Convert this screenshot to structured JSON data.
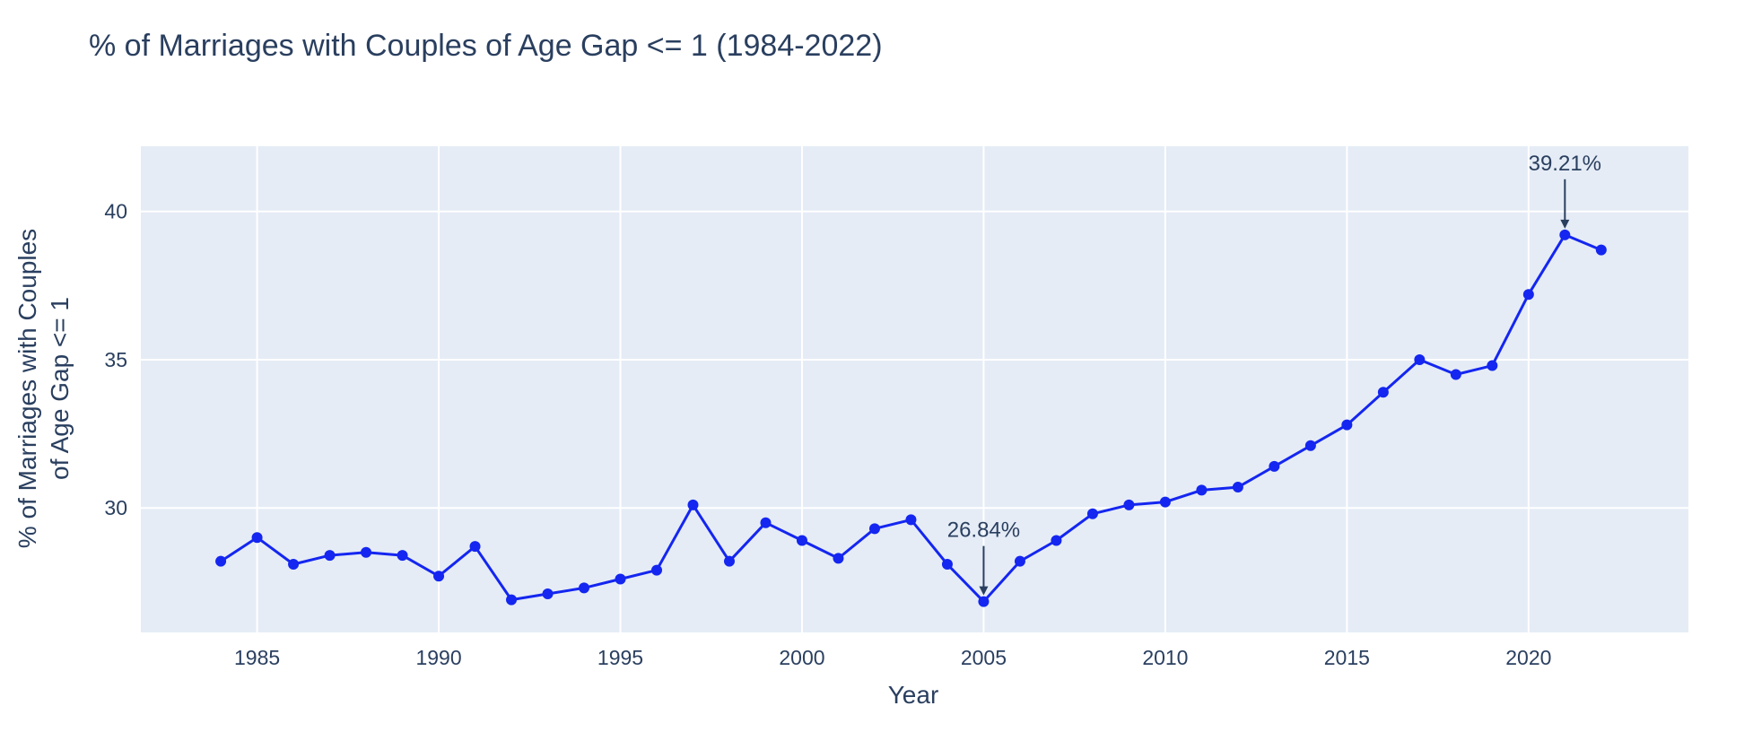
{
  "chart_data": {
    "type": "line",
    "title": "% of Marriages with Couples of Age Gap <= 1 (1984-2022)",
    "xlabel": "Year",
    "ylabel_lines": [
      "% of Marriages with Couples",
      "of Age Gap <= 1"
    ],
    "xlim": [
      1981.8,
      2024.4
    ],
    "ylim": [
      25.8,
      42.2
    ],
    "xticks": [
      1985,
      1990,
      1995,
      2000,
      2005,
      2010,
      2015,
      2020
    ],
    "yticks": [
      30,
      35,
      40
    ],
    "grid": true,
    "line_color": "#1426f0",
    "plot_background": "#e5ecf6",
    "series": [
      {
        "x": [
          1984,
          1985,
          1986,
          1987,
          1988,
          1989,
          1990,
          1991,
          1992,
          1993,
          1994,
          1995,
          1996,
          1997,
          1998,
          1999,
          2000,
          2001,
          2002,
          2003,
          2004,
          2005,
          2006,
          2007,
          2008,
          2009,
          2010,
          2011,
          2012,
          2013,
          2014,
          2015,
          2016,
          2017,
          2018,
          2019,
          2020,
          2021,
          2022
        ],
        "values": [
          28.2,
          29.0,
          28.1,
          28.4,
          28.5,
          28.4,
          27.7,
          28.7,
          26.9,
          27.1,
          27.3,
          27.6,
          27.9,
          30.1,
          28.2,
          29.5,
          28.9,
          28.3,
          29.3,
          29.6,
          28.1,
          26.84,
          28.2,
          28.9,
          29.8,
          30.1,
          30.2,
          30.6,
          30.7,
          31.4,
          32.1,
          32.8,
          33.9,
          35.0,
          34.5,
          34.8,
          37.2,
          39.21,
          38.7
        ]
      }
    ],
    "annotations": [
      {
        "x": 2005,
        "y": 26.84,
        "text": "26.84%"
      },
      {
        "x": 2021,
        "y": 39.21,
        "text": "39.21%"
      }
    ]
  }
}
